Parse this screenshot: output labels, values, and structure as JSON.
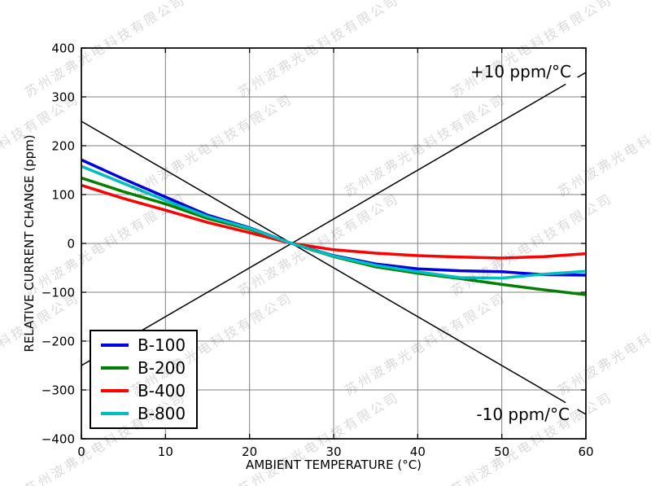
{
  "watermark": {
    "text": "苏州波弗光电科技有限公司"
  },
  "chart_data": {
    "type": "line",
    "xlabel": "AMBIENT TEMPERATURE (°C)",
    "ylabel": "RELATIVE CURRENT CHANGE (ppm)",
    "xlim": [
      0,
      60
    ],
    "ylim": [
      -400,
      400
    ],
    "grid": true,
    "legend_position": "lower left",
    "xticks": [
      0,
      10,
      20,
      30,
      40,
      50,
      60
    ],
    "yticks": [
      400,
      300,
      200,
      100,
      0,
      -100,
      -200,
      -300,
      -400
    ],
    "xtick_labels": [
      "0",
      "10",
      "20",
      "30",
      "40",
      "50",
      "60"
    ],
    "ytick_labels": [
      "400",
      "300",
      "200",
      "100",
      "0",
      "−100",
      "−200",
      "−300",
      "−400"
    ],
    "x": [
      0,
      5,
      10,
      15,
      20,
      25,
      30,
      35,
      40,
      45,
      50,
      55,
      60
    ],
    "series": [
      {
        "name": "B-100",
        "color": "#0000e0",
        "values": [
          171,
          132,
          95,
          58,
          32,
          0,
          -25,
          -42,
          -52,
          -56,
          -58,
          -64,
          -65
        ]
      },
      {
        "name": "B-200",
        "color": "#008000",
        "values": [
          134,
          106,
          81,
          51,
          29,
          0,
          -27,
          -48,
          -61,
          -72,
          -84,
          -95,
          -105
        ]
      },
      {
        "name": "B-400",
        "color": "#ff0000",
        "values": [
          119,
          92,
          68,
          43,
          22,
          0,
          -13,
          -20,
          -25,
          -28,
          -30,
          -27,
          -21
        ]
      },
      {
        "name": "B-800",
        "color": "#00bfbf",
        "values": [
          158,
          123,
          88,
          55,
          31,
          0,
          -26,
          -45,
          -58,
          -70,
          -71,
          -63,
          -57
        ]
      }
    ],
    "reference_lines": [
      {
        "label": "+10 ppm/°C",
        "slope_ppm_per_C": 10,
        "segments": [
          [
            [
              0,
              -250
            ],
            [
              57.6,
              326
            ]
          ],
          [
            [
              59,
              340
            ],
            [
              60,
              350
            ]
          ]
        ]
      },
      {
        "label": "-10 ppm/°C",
        "slope_ppm_per_C": -10,
        "segments": [
          [
            [
              0,
              250
            ],
            [
              57.6,
              -326
            ]
          ],
          [
            [
              59,
              -340
            ],
            [
              60,
              -350
            ]
          ]
        ]
      }
    ]
  }
}
